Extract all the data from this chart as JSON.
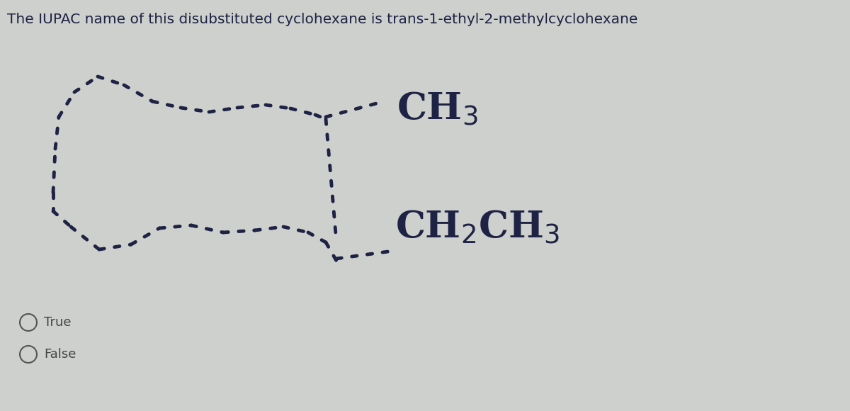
{
  "title": "The IUPAC name of this disubstituted cyclohexane is trans-1-ethyl-2-methylcyclohexane",
  "title_fontsize": 14.5,
  "bg_color": "#cdd0cc",
  "text_color": "#1e2244",
  "ch3_label": "CH$_3$",
  "ch2ch3_label": "CH$_2$CH$_3$",
  "ch3_fontsize": 38,
  "ch2ch3_fontsize": 38,
  "true_label": "True",
  "false_label": "False",
  "option_fontsize": 13,
  "dot_color": "#1e2244",
  "dot_lw": 3.5,
  "dot_pattern": [
    2,
    3
  ]
}
